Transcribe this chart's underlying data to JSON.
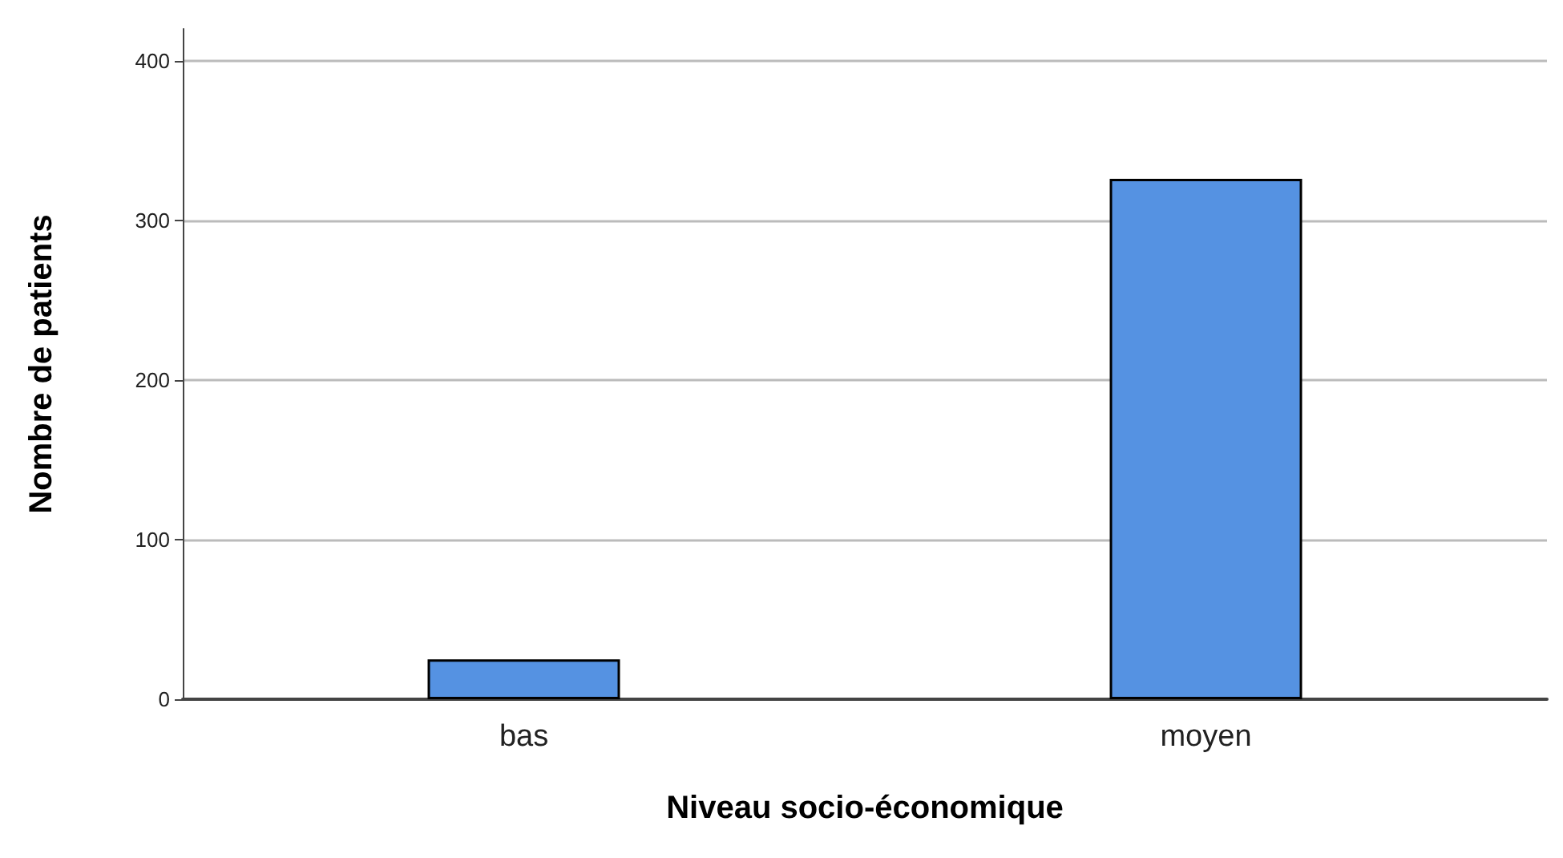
{
  "chart_data": {
    "type": "bar",
    "xlabel": "Niveau socio-économique",
    "ylabel": "Nombre de patients",
    "categories": [
      "bas",
      "moyen"
    ],
    "values": [
      25,
      326
    ],
    "color": "#5592e2",
    "ylim": [
      0,
      420
    ],
    "yticks": [
      0,
      100,
      200,
      300,
      400
    ],
    "grid": "y"
  }
}
